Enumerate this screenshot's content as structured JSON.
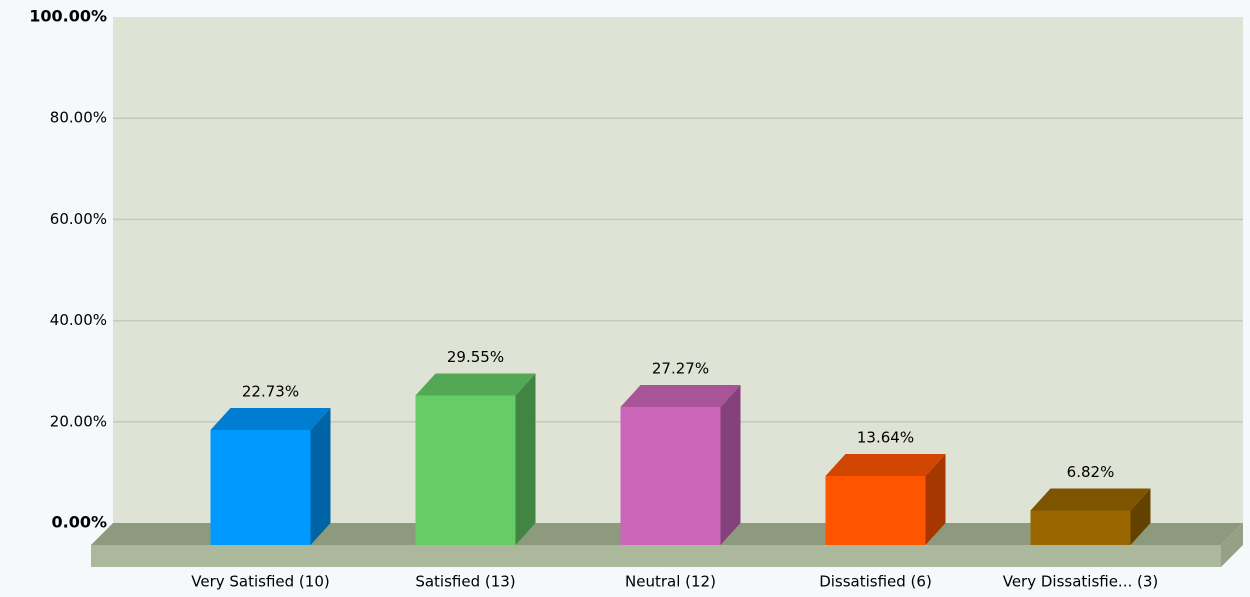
{
  "chart_data": {
    "type": "bar3d",
    "categories": [
      "Very Satisfied (10)",
      "Satisfied (13)",
      "Neutral (12)",
      "Dissatisfied (6)",
      "Very Dissatisfie... (3)"
    ],
    "values": [
      22.73,
      29.55,
      27.27,
      13.64,
      6.82
    ],
    "value_labels": [
      "22.73%",
      "29.55%",
      "27.27%",
      "13.64%",
      "6.82%"
    ],
    "colors": [
      "#0099ff",
      "#66cc66",
      "#cc66bb",
      "#ff5500",
      "#996600"
    ],
    "ylim": [
      0,
      100
    ],
    "yticks": [
      {
        "value": 0,
        "label": "0.00%"
      },
      {
        "value": 20,
        "label": "20.00%"
      },
      {
        "value": 40,
        "label": "40.00%"
      },
      {
        "value": 60,
        "label": "60.00%"
      },
      {
        "value": 80,
        "label": "80.00%"
      },
      {
        "value": 100,
        "label": "100.00%"
      }
    ],
    "grid": true
  }
}
